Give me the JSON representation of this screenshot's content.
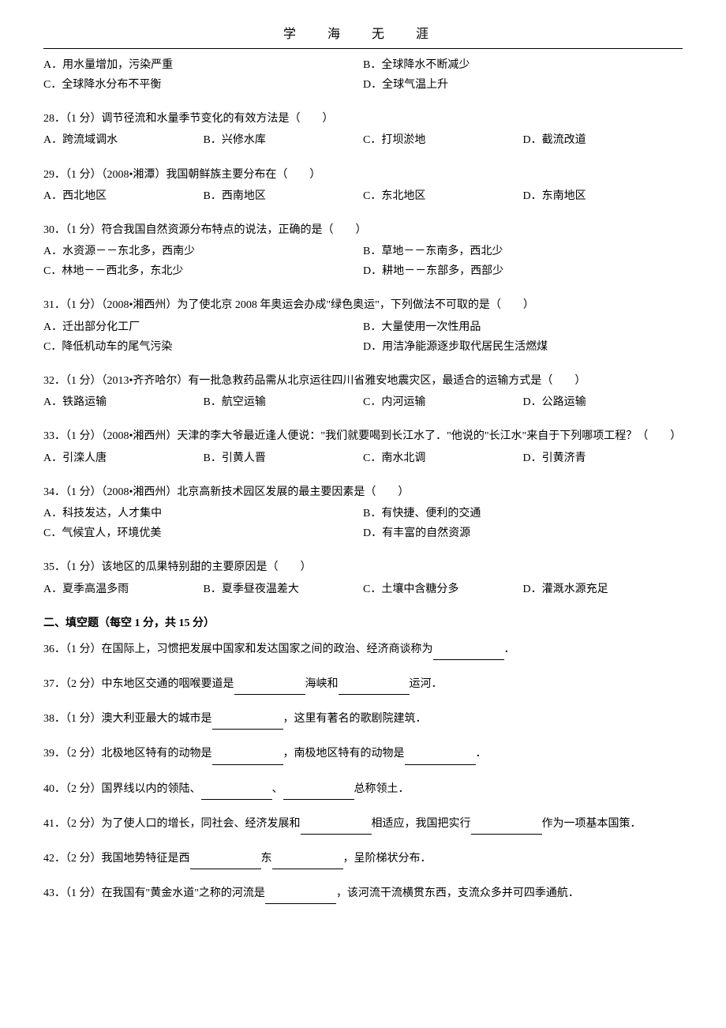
{
  "header": "学 海 无 涯",
  "q27": {
    "optA": "A．用水量增加，污染严重",
    "optB": "B．全球降水不断减少",
    "optC": "C．全球降水分布不平衡",
    "optD": "D．全球气温上升"
  },
  "q28": {
    "stem": "28．（1 分）调节径流和水量季节变化的有效方法是（　　）",
    "optA": "A．跨流域调水",
    "optB": "B．兴修水库",
    "optC": "C．打坝淤地",
    "optD": "D．截流改道"
  },
  "q29": {
    "stem": "29．（1 分）（2008•湘潭）我国朝鲜族主要分布在（　　）",
    "optA": "A．西北地区",
    "optB": "B．西南地区",
    "optC": "C．东北地区",
    "optD": "D．东南地区"
  },
  "q30": {
    "stem": "30．（1 分）符合我国自然资源分布特点的说法，正确的是（　　）",
    "optA": "A．水资源－－东北多，西南少",
    "optB": "B．草地－－东南多，西北少",
    "optC": "C．林地－－西北多，东北少",
    "optD": "D．耕地－－东部多，西部少"
  },
  "q31": {
    "stem": "31．（1 分）（2008•湘西州）为了使北京 2008 年奥运会办成\"绿色奥运\"，下列做法不可取的是（　　）",
    "optA": "A．迁出部分化工厂",
    "optB": "B．大量使用一次性用品",
    "optC": "C．降低机动车的尾气污染",
    "optD": "D．用洁净能源逐步取代居民生活燃煤"
  },
  "q32": {
    "stem": "32．（1 分）（2013•齐齐哈尔）有一批急救药品需从北京运往四川省雅安地震灾区，最适合的运输方式是（　　）",
    "optA": "A．铁路运输",
    "optB": "B．航空运输",
    "optC": "C．内河运输",
    "optD": "D．公路运输"
  },
  "q33": {
    "stem": "33．（1 分）（2008•湘西州）天津的李大爷最近逢人便说：\"我们就要喝到长江水了．\"他说的\"长江水\"来自于下列哪项工程？（　　）",
    "optA": "A．引滦人唐",
    "optB": "B．引黄人晋",
    "optC": "C．南水北调",
    "optD": "D．引黄济青"
  },
  "q34": {
    "stem": "34．（1 分）（2008•湘西州）北京高新技术园区发展的最主要因素是（　　）",
    "optA": "A．科技发达，人才集中",
    "optB": "B．有快捷、便利的交通",
    "optC": "C．气候宜人，环境优美",
    "optD": "D．有丰富的自然资源"
  },
  "q35": {
    "stem": "35．（1 分）该地区的瓜果特别甜的主要原因是（　　）",
    "optA": "A．夏季高温多雨",
    "optB": "B．夏季昼夜温差大",
    "optC": "C．土壤中含糖分多",
    "optD": "D．灌溉水源充足"
  },
  "section2_title": "二、填空题（每空 1 分，共 15 分）",
  "q36": {
    "p1": "36．（1 分）在国际上，习惯把发展中国家和发达国家之间的政治、经济商谈称为",
    "p2": "．"
  },
  "q37": {
    "p1": "37．（2 分）中东地区交通的咽喉要道是",
    "p2": "海峡和",
    "p3": "运河．"
  },
  "q38": {
    "p1": "38．（1 分）澳大利亚最大的城市是",
    "p2": "，这里有著名的歌剧院建筑．"
  },
  "q39": {
    "p1": "39．（2 分）北极地区特有的动物是",
    "p2": "，南极地区特有的动物是",
    "p3": "．"
  },
  "q40": {
    "p1": "40．（2 分）国界线以内的领陆、",
    "p2": "、",
    "p3": "总称领土．"
  },
  "q41": {
    "p1": "41．（2 分）为了使人口的增长，同社会、经济发展和",
    "p2": "相适应，我国把实行",
    "p3": "作为一项基本国策．"
  },
  "q42": {
    "p1": "42．（2 分）我国地势特征是西",
    "p2": "东",
    "p3": "，呈阶梯状分布．"
  },
  "q43": {
    "p1": "43．（1 分）在我国有\"黄金水道\"之称的河流是",
    "p2": "，该河流干流横贯东西，支流众多并可四季通航．"
  }
}
